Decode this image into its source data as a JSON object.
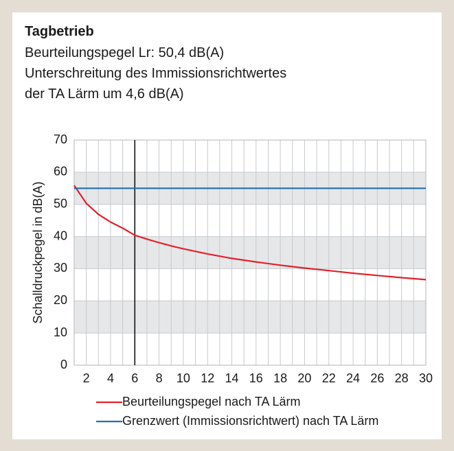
{
  "chart_data": {
    "type": "line",
    "title": "Tagbetrieb",
    "subtitle": [
      "Beurteilungspegel Lr: 50,4 dB(A)",
      "Unterschreitung des Immissionsrichtwertes",
      "der TA Lärm um 4,6 dB(A)"
    ],
    "ylabel": "Schalldruckpegel in dB(A)",
    "x": [
      1,
      2,
      3,
      4,
      5,
      6,
      7,
      8,
      9,
      10,
      12,
      14,
      16,
      18,
      20,
      22,
      24,
      26,
      28,
      30
    ],
    "series": [
      {
        "name": "Beurteilungspegel nach TA Lärm",
        "color": "#e3202b",
        "values": [
          55.9,
          50.3,
          46.9,
          44.5,
          42.6,
          40.4,
          39.2,
          38.1,
          37.1,
          36.2,
          34.6,
          33.2,
          32.1,
          31.1,
          30.2,
          29.4,
          28.6,
          27.9,
          27.2,
          26.6
        ]
      },
      {
        "name": "Grenzwert (Immissionsrichtwert) nach TA Lärm",
        "color": "#1f6fb2",
        "values": [
          55,
          55,
          55,
          55,
          55,
          55,
          55,
          55,
          55,
          55,
          55,
          55,
          55,
          55,
          55,
          55,
          55,
          55,
          55,
          55
        ]
      }
    ],
    "xlim": [
      1,
      30
    ],
    "xticks": [
      2,
      4,
      6,
      8,
      10,
      12,
      14,
      16,
      18,
      20,
      22,
      24,
      26,
      28,
      30
    ],
    "ylim": [
      0,
      70
    ],
    "yticks": [
      0,
      10,
      20,
      30,
      40,
      50,
      60,
      70
    ],
    "xgrid_step": 1,
    "bands": [
      [
        10,
        20
      ],
      [
        30,
        40
      ],
      [
        50,
        60
      ]
    ],
    "vline": 6,
    "grid": true
  }
}
